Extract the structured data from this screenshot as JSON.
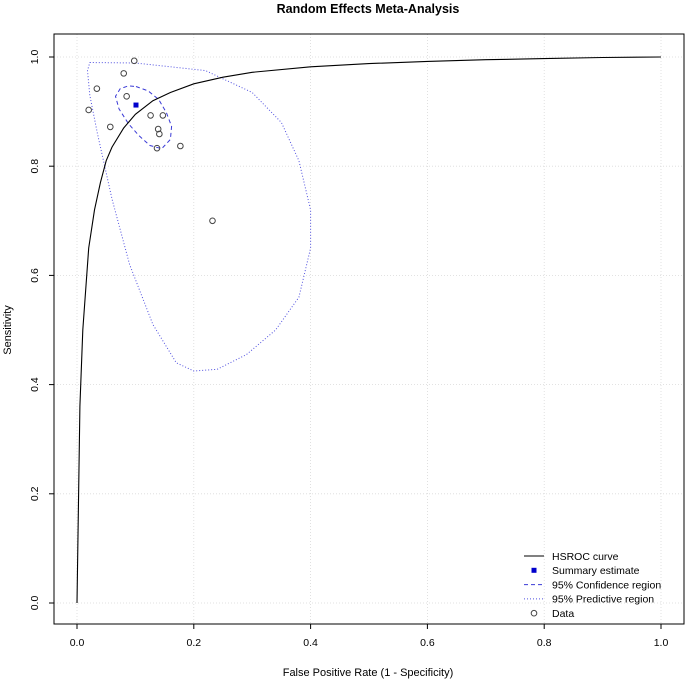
{
  "chart_data": {
    "type": "scatter",
    "title": "Random Effects Meta-Analysis",
    "xlabel": "False Positive Rate (1 - Specificity)",
    "ylabel": "Sensitivity",
    "xlim": [
      0,
      1
    ],
    "ylim": [
      0,
      1
    ],
    "xticks": [
      "0.0",
      "0.2",
      "0.4",
      "0.6",
      "0.8",
      "1.0"
    ],
    "yticks": [
      "0.0",
      "0.2",
      "0.4",
      "0.6",
      "0.8",
      "1.0"
    ],
    "grid": true,
    "legend_position": "bottom-right",
    "colors": {
      "hsroc": "#000000",
      "summary": "#0000cc",
      "confidence": "#3a3ad6",
      "predictive": "#5050e0",
      "data": "#444444",
      "grid": "#d9d9d9"
    },
    "summary_estimate": {
      "fpr": 0.101,
      "sensitivity": 0.912
    },
    "hsroc_curve": [
      [
        0.0,
        0.0
      ],
      [
        0.005,
        0.36
      ],
      [
        0.01,
        0.5
      ],
      [
        0.02,
        0.65
      ],
      [
        0.03,
        0.72
      ],
      [
        0.04,
        0.77
      ],
      [
        0.05,
        0.81
      ],
      [
        0.06,
        0.835
      ],
      [
        0.08,
        0.87
      ],
      [
        0.1,
        0.895
      ],
      [
        0.13,
        0.92
      ],
      [
        0.16,
        0.935
      ],
      [
        0.2,
        0.951
      ],
      [
        0.25,
        0.963
      ],
      [
        0.3,
        0.972
      ],
      [
        0.4,
        0.982
      ],
      [
        0.5,
        0.988
      ],
      [
        0.6,
        0.992
      ],
      [
        0.7,
        0.995
      ],
      [
        0.8,
        0.997
      ],
      [
        0.9,
        0.999
      ],
      [
        1.0,
        1.0
      ]
    ],
    "confidence_region": [
      [
        0.101,
        0.946
      ],
      [
        0.122,
        0.938
      ],
      [
        0.14,
        0.922
      ],
      [
        0.153,
        0.898
      ],
      [
        0.162,
        0.873
      ],
      [
        0.16,
        0.849
      ],
      [
        0.145,
        0.832
      ],
      [
        0.125,
        0.838
      ],
      [
        0.106,
        0.856
      ],
      [
        0.088,
        0.878
      ],
      [
        0.072,
        0.905
      ],
      [
        0.066,
        0.928
      ],
      [
        0.074,
        0.942
      ],
      [
        0.088,
        0.947
      ],
      [
        0.101,
        0.946
      ]
    ],
    "predictive_region": [
      [
        0.022,
        0.99
      ],
      [
        0.1,
        0.989
      ],
      [
        0.22,
        0.975
      ],
      [
        0.3,
        0.935
      ],
      [
        0.35,
        0.88
      ],
      [
        0.38,
        0.81
      ],
      [
        0.4,
        0.72
      ],
      [
        0.4,
        0.65
      ],
      [
        0.38,
        0.56
      ],
      [
        0.34,
        0.5
      ],
      [
        0.29,
        0.455
      ],
      [
        0.24,
        0.428
      ],
      [
        0.2,
        0.425
      ],
      [
        0.17,
        0.44
      ],
      [
        0.13,
        0.51
      ],
      [
        0.09,
        0.62
      ],
      [
        0.06,
        0.74
      ],
      [
        0.035,
        0.86
      ],
      [
        0.022,
        0.93
      ],
      [
        0.018,
        0.975
      ],
      [
        0.022,
        0.99
      ]
    ],
    "data_points": [
      [
        0.098,
        0.993
      ],
      [
        0.08,
        0.97
      ],
      [
        0.034,
        0.942
      ],
      [
        0.085,
        0.928
      ],
      [
        0.02,
        0.903
      ],
      [
        0.126,
        0.893
      ],
      [
        0.147,
        0.893
      ],
      [
        0.057,
        0.872
      ],
      [
        0.139,
        0.868
      ],
      [
        0.141,
        0.859
      ],
      [
        0.177,
        0.837
      ],
      [
        0.137,
        0.833
      ],
      [
        0.232,
        0.7
      ]
    ],
    "legend": [
      {
        "label": "HSROC curve",
        "kind": "line"
      },
      {
        "label": "Summary estimate",
        "kind": "square"
      },
      {
        "label": "95% Confidence region",
        "kind": "dashed"
      },
      {
        "label": "95% Predictive region",
        "kind": "dotted"
      },
      {
        "label": "Data",
        "kind": "circle"
      }
    ]
  }
}
